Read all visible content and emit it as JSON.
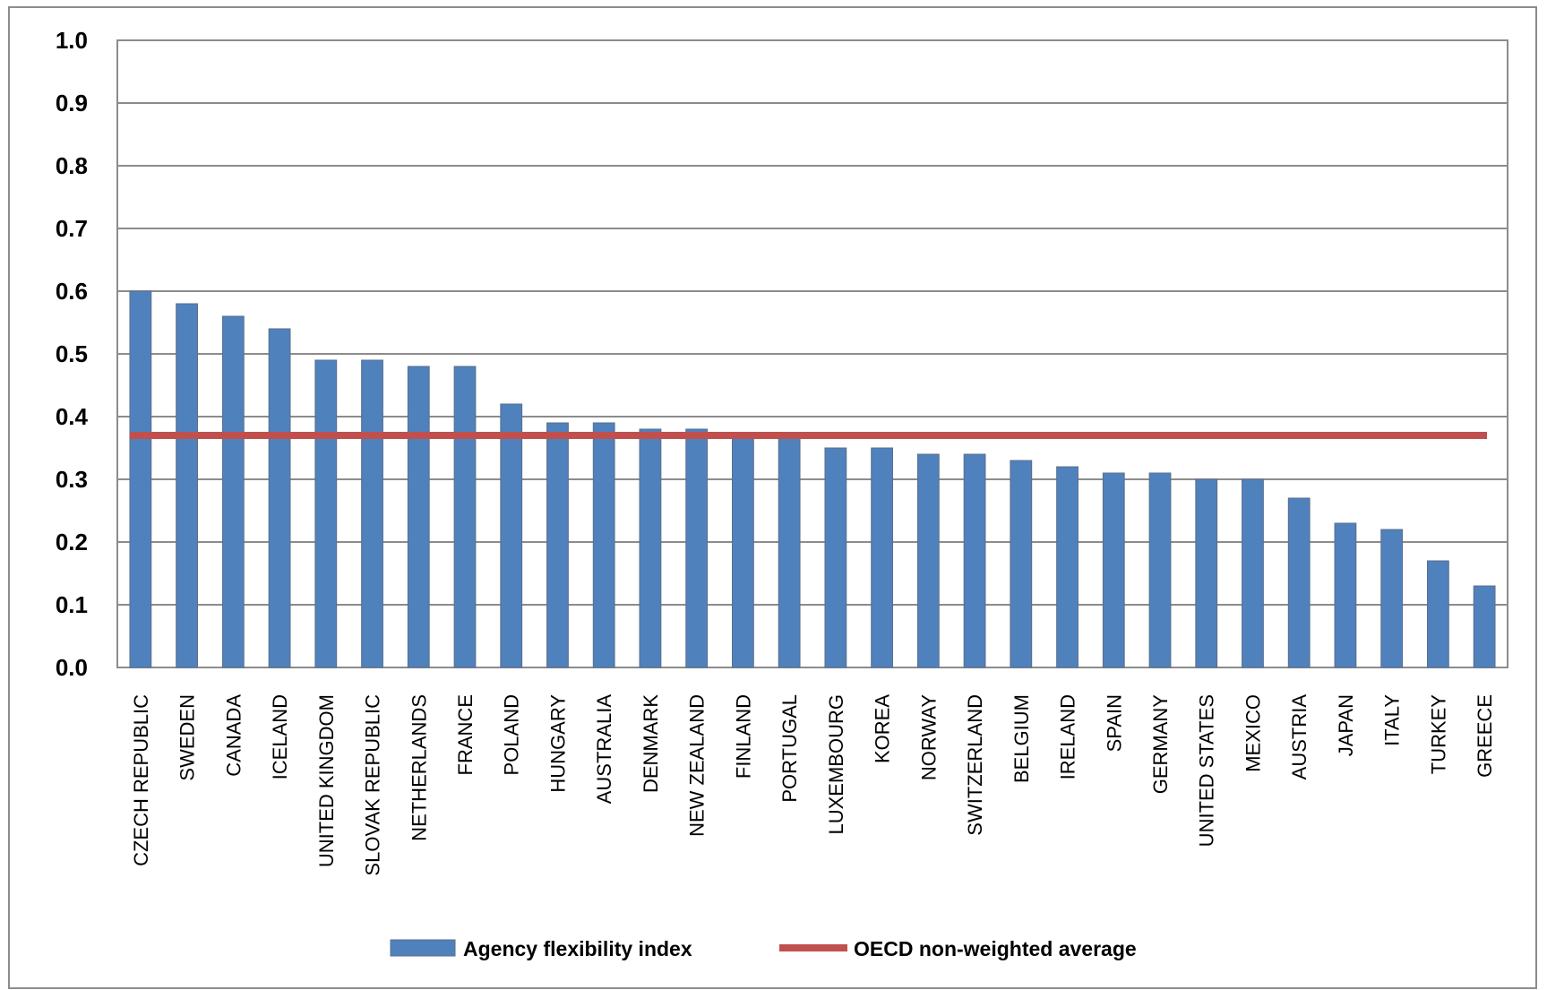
{
  "chart_data": {
    "type": "bar",
    "title": "",
    "xlabel": "",
    "ylabel": "",
    "ylim": [
      0,
      1
    ],
    "yticks": [
      "0.0",
      "0.1",
      "0.2",
      "0.3",
      "0.4",
      "0.5",
      "0.6",
      "0.7",
      "0.8",
      "0.9",
      "1.0"
    ],
    "grid": true,
    "legend_position": "bottom",
    "categories": [
      "CZECH REPUBLIC",
      "SWEDEN",
      "CANADA",
      "ICELAND",
      "UNITED KINGDOM",
      "SLOVAK REPUBLIC",
      "NETHERLANDS",
      "FRANCE",
      "POLAND",
      "HUNGARY",
      "AUSTRALIA",
      "DENMARK",
      "NEW ZEALAND",
      "FINLAND",
      "PORTUGAL",
      "LUXEMBOURG",
      "KOREA",
      "NORWAY",
      "SWITZERLAND",
      "BELGIUM",
      "IRELAND",
      "SPAIN",
      "GERMANY",
      "UNITED STATES",
      "MEXICO",
      "AUSTRIA",
      "JAPAN",
      "ITALY",
      "TURKEY",
      "GREECE"
    ],
    "series": [
      {
        "name": "Agency flexibility index",
        "type": "bar",
        "color": "#4F81BD",
        "values": [
          0.6,
          0.58,
          0.56,
          0.54,
          0.49,
          0.49,
          0.48,
          0.48,
          0.42,
          0.39,
          0.39,
          0.38,
          0.38,
          0.37,
          0.37,
          0.35,
          0.35,
          0.34,
          0.34,
          0.33,
          0.32,
          0.31,
          0.31,
          0.3,
          0.3,
          0.27,
          0.23,
          0.22,
          0.17,
          0.13
        ]
      },
      {
        "name": "OECD non-weighted average",
        "type": "line",
        "color": "#C0504D",
        "value": 0.37
      }
    ]
  }
}
